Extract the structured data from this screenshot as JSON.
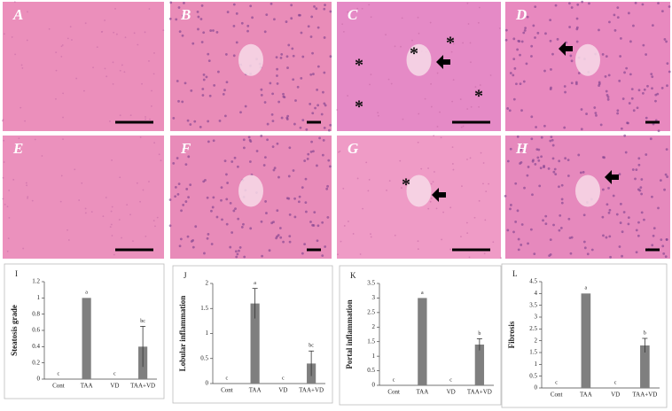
{
  "panels": [
    {
      "label": "A",
      "annotations": []
    },
    {
      "label": "B",
      "annotations": []
    },
    {
      "label": "C",
      "annotations": [
        "*",
        "*",
        "*",
        "*",
        "*"
      ]
    },
    {
      "label": "D",
      "annotations": []
    },
    {
      "label": "E",
      "annotations": []
    },
    {
      "label": "F",
      "annotations": []
    },
    {
      "label": "G",
      "annotations": [
        "*"
      ]
    },
    {
      "label": "H",
      "annotations": []
    }
  ],
  "chart_data": [
    {
      "type": "bar",
      "title": "I",
      "y_label": "Steatosis grade",
      "categories": [
        "Cont",
        "TAA",
        "VD",
        "TAA+VD"
      ],
      "values": [
        0,
        1,
        0,
        0.4
      ],
      "errors": [
        0,
        0,
        0,
        0.25
      ],
      "annotations": [
        "c",
        "a",
        "c",
        "bc"
      ],
      "color": "#7f7f7f",
      "ylim": [
        0,
        1.2
      ],
      "yticks": [
        0,
        0.2,
        0.4,
        0.6,
        0.8,
        1,
        1.2
      ]
    },
    {
      "type": "bar",
      "title": "J",
      "y_label": "Lobular inflammation",
      "categories": [
        "Cont",
        "TAA",
        "VD",
        "TAA+VD"
      ],
      "values": [
        0,
        1.6,
        0,
        0.4
      ],
      "errors": [
        0,
        0.3,
        0,
        0.25
      ],
      "annotations": [
        "c",
        "a",
        "c",
        "bc"
      ],
      "color": "#7f7f7f",
      "ylim": [
        0,
        2
      ],
      "yticks": [
        0,
        0.5,
        1,
        1.5,
        2
      ]
    },
    {
      "type": "bar",
      "title": "K",
      "y_label": "Portal inflammation",
      "categories": [
        "Cont",
        "TAA",
        "VD",
        "TAA+VD"
      ],
      "values": [
        0,
        3,
        0,
        1.4
      ],
      "errors": [
        0,
        0,
        0,
        0.2
      ],
      "annotations": [
        "c",
        "a",
        "c",
        "b"
      ],
      "color": "#7f7f7f",
      "ylim": [
        0,
        3.5
      ],
      "yticks": [
        0,
        0.5,
        1,
        1.5,
        2,
        2.5,
        3,
        3.5
      ]
    },
    {
      "type": "bar",
      "title": "L",
      "y_label": "Fibrosis",
      "categories": [
        "Cont",
        "TAA",
        "VD",
        "TAA+VD"
      ],
      "values": [
        0,
        4,
        0,
        1.8
      ],
      "errors": [
        0,
        0,
        0,
        0.3
      ],
      "annotations": [
        "c",
        "a",
        "c",
        "b"
      ],
      "color": "#7f7f7f",
      "ylim": [
        0,
        4.5
      ],
      "yticks": [
        0,
        0.5,
        1,
        1.5,
        2,
        2.5,
        3,
        3.5,
        4,
        4.5
      ]
    }
  ]
}
